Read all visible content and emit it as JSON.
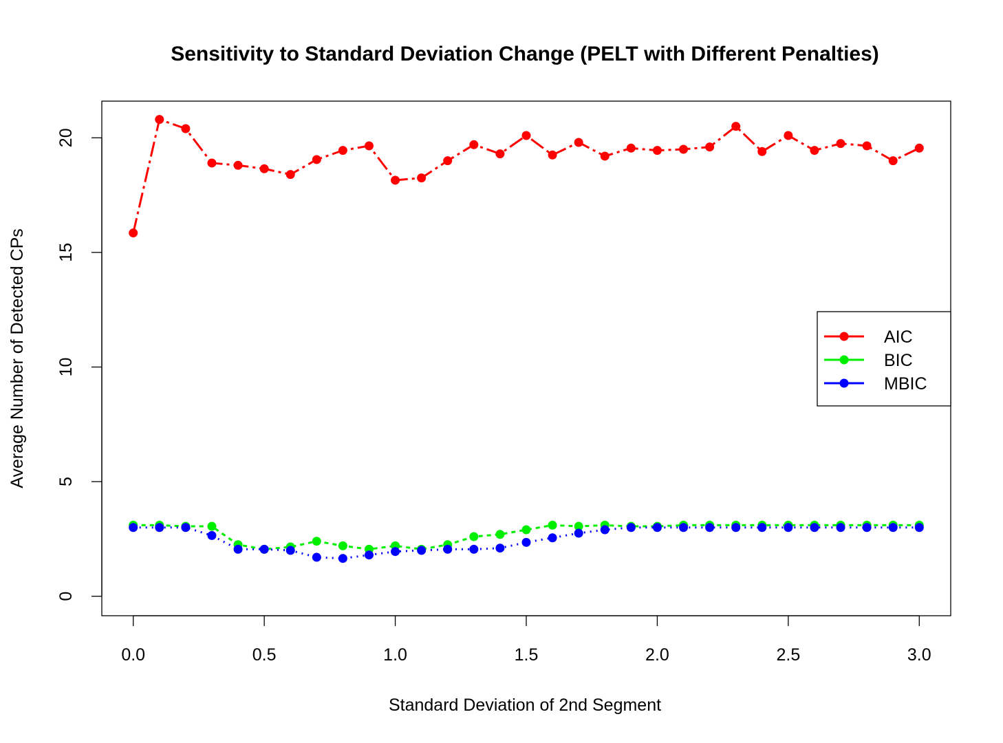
{
  "chart_data": {
    "type": "line",
    "title": "Sensitivity to Standard Deviation Change (PELT with Different Penalties)",
    "xlabel": "Standard Deviation of 2nd Segment",
    "ylabel": "Average Number of Detected CPs",
    "xlim": [
      -0.12,
      3.12
    ],
    "ylim": [
      -0.85,
      21.6
    ],
    "xticks": [
      "0.0",
      "0.5",
      "1.0",
      "1.5",
      "2.0",
      "2.5",
      "3.0"
    ],
    "yticks": [
      "0",
      "5",
      "10",
      "15",
      "20"
    ],
    "x": [
      0.0,
      0.1,
      0.2,
      0.3,
      0.4,
      0.5,
      0.6,
      0.7,
      0.8,
      0.9,
      1.0,
      1.1,
      1.2,
      1.3,
      1.4,
      1.5,
      1.6,
      1.7,
      1.8,
      1.9,
      2.0,
      2.1,
      2.2,
      2.3,
      2.4,
      2.5,
      2.6,
      2.7,
      2.8,
      2.9,
      3.0
    ],
    "legend_position": "right",
    "grid": false,
    "series": [
      {
        "name": "AIC",
        "color": "#ff0000",
        "values": [
          15.85,
          20.8,
          20.4,
          18.9,
          18.8,
          18.65,
          18.4,
          19.05,
          19.45,
          19.65,
          18.15,
          18.25,
          19.0,
          19.7,
          19.3,
          20.1,
          19.25,
          19.8,
          19.2,
          19.55,
          19.45,
          19.5,
          19.6,
          20.5,
          19.4,
          20.1,
          19.45,
          19.75,
          19.65,
          19.0,
          19.55
        ]
      },
      {
        "name": "BIC",
        "color": "#00ee00",
        "values": [
          3.1,
          3.1,
          3.05,
          3.05,
          2.25,
          2.05,
          2.15,
          2.4,
          2.2,
          2.05,
          2.2,
          2.05,
          2.25,
          2.6,
          2.7,
          2.9,
          3.1,
          3.05,
          3.1,
          3.05,
          3.05,
          3.1,
          3.1,
          3.1,
          3.1,
          3.1,
          3.1,
          3.1,
          3.1,
          3.1,
          3.1
        ]
      },
      {
        "name": "MBIC",
        "color": "#0000ff",
        "values": [
          3.0,
          3.0,
          3.0,
          2.65,
          2.05,
          2.05,
          2.0,
          1.7,
          1.65,
          1.8,
          1.95,
          2.0,
          2.05,
          2.05,
          2.1,
          2.35,
          2.55,
          2.75,
          2.9,
          3.0,
          3.0,
          3.0,
          3.0,
          3.0,
          3.0,
          3.0,
          3.0,
          3.0,
          3.0,
          3.0,
          3.0
        ]
      }
    ]
  }
}
